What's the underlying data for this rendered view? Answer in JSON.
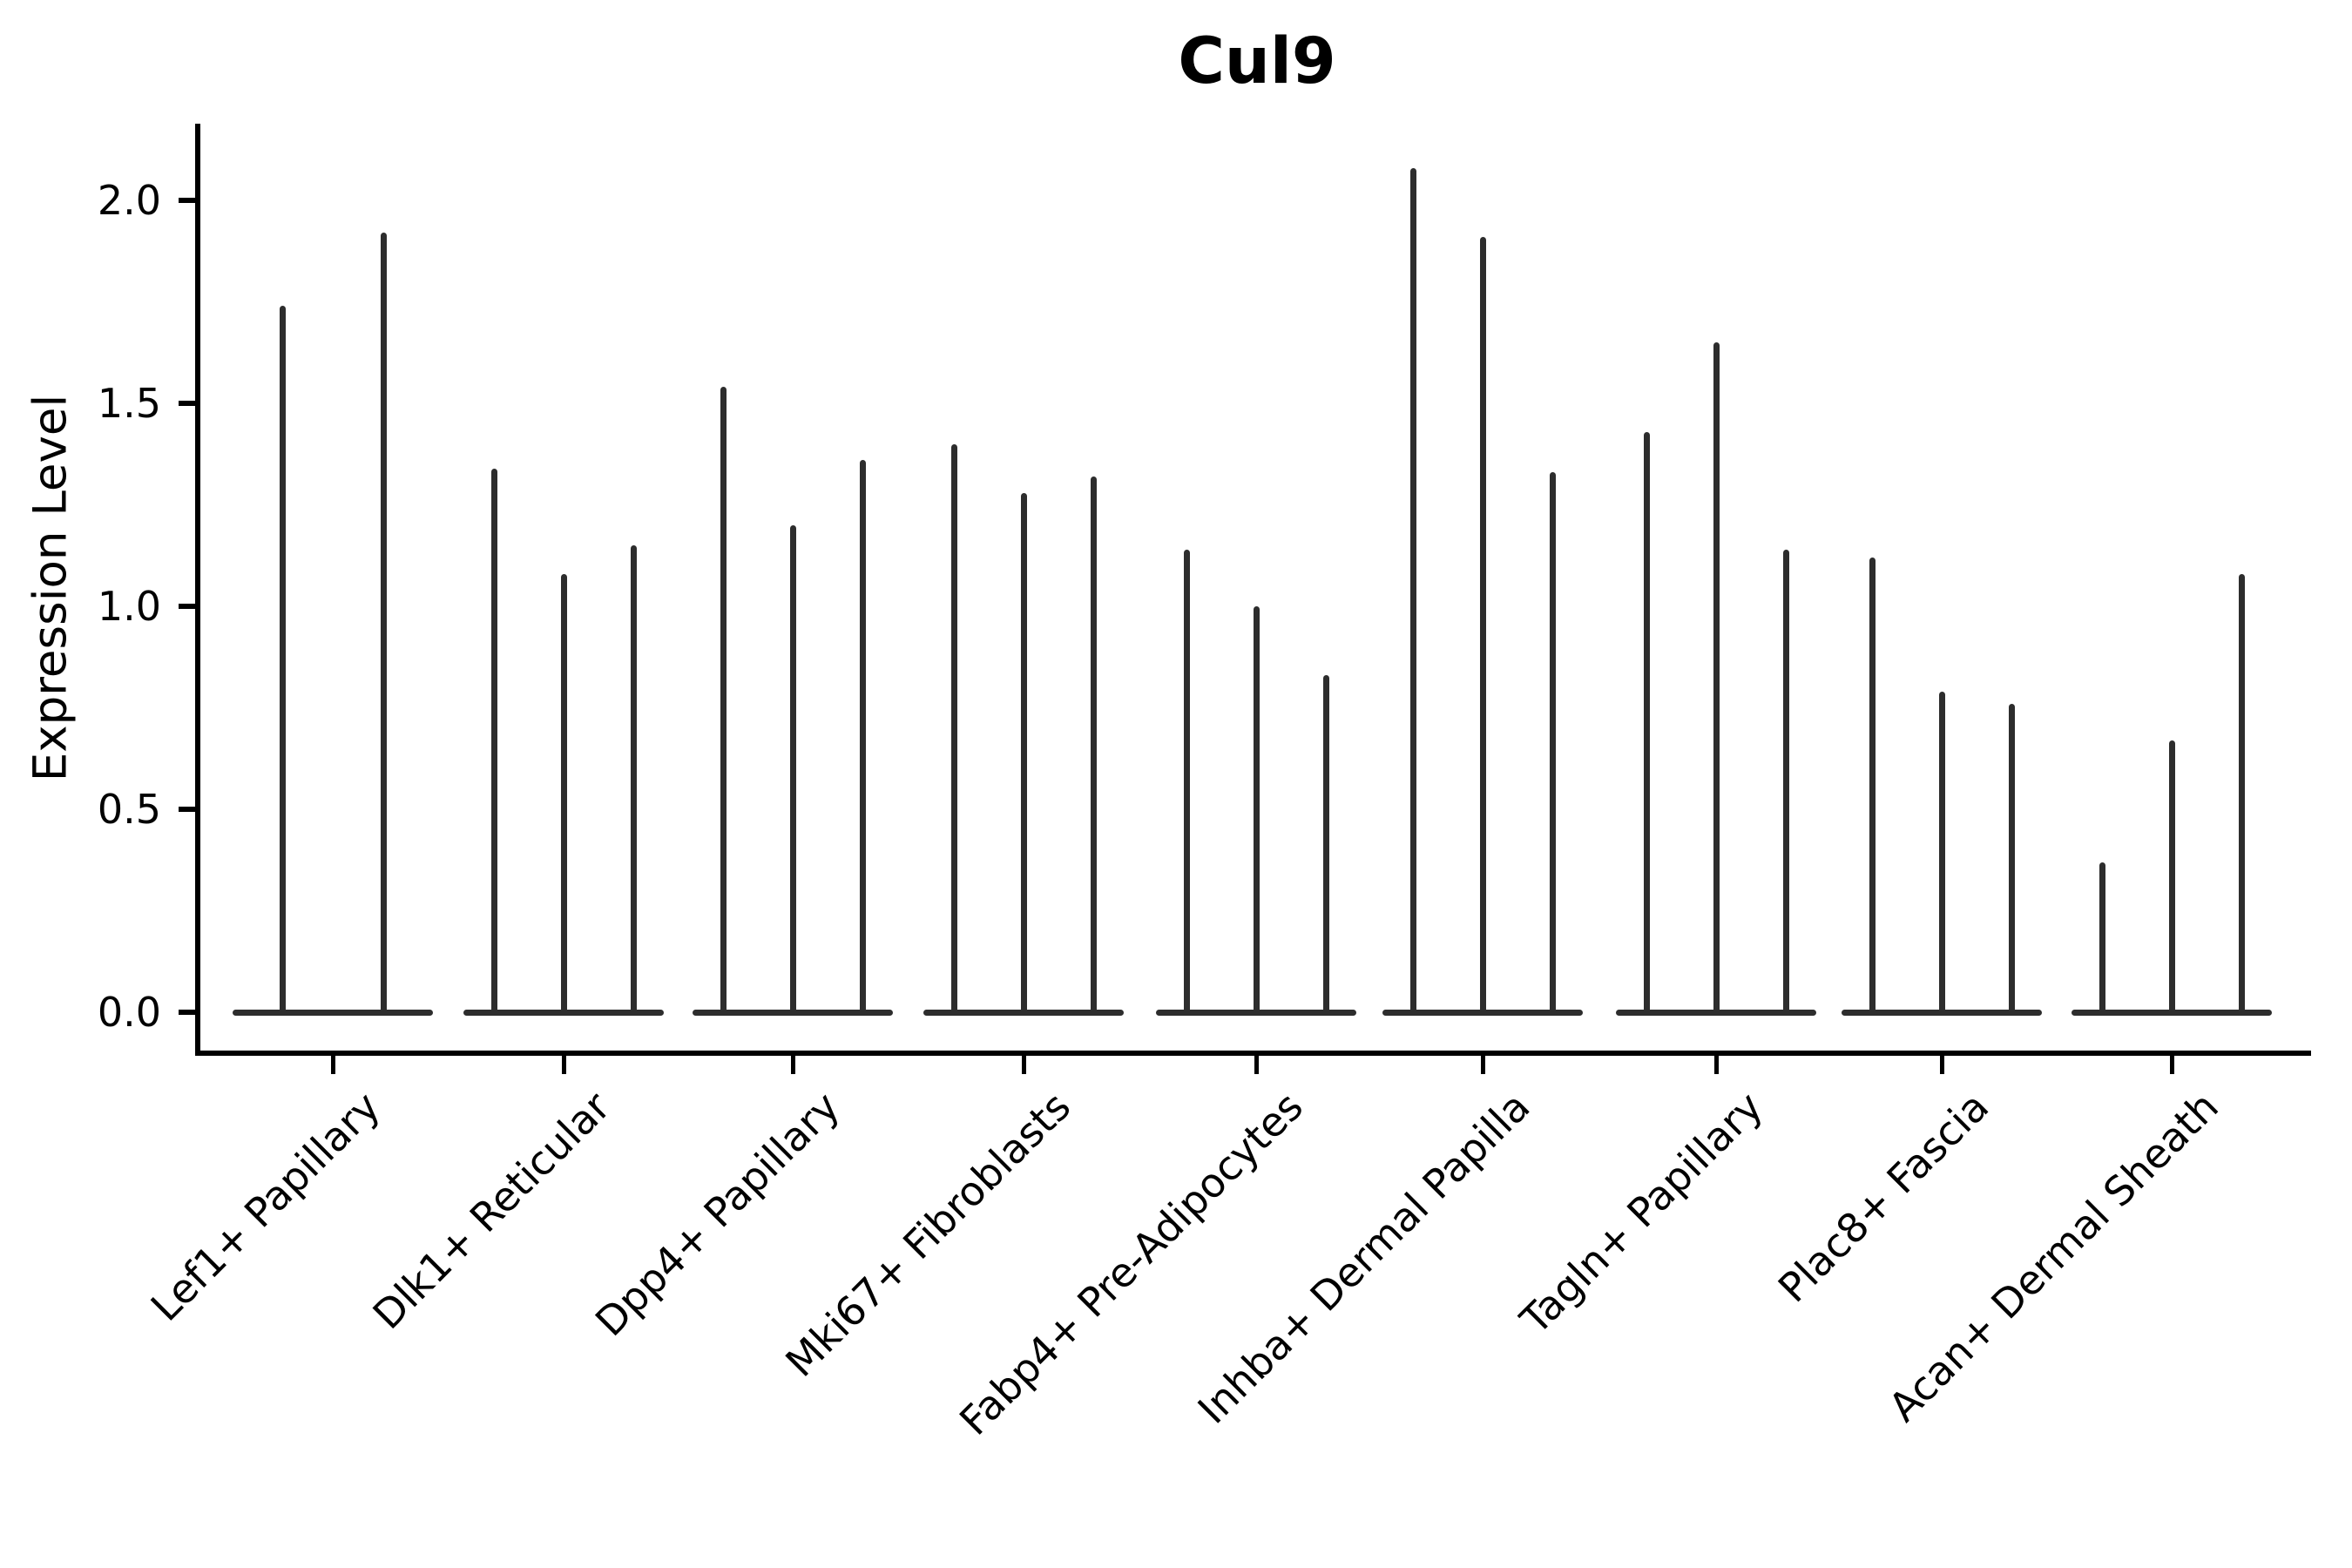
{
  "figure": {
    "title": "Cul9",
    "ylabel": "Expression Level"
  },
  "chart_data": {
    "type": "violin",
    "title": "Cul9",
    "subtitle": "",
    "xlabel": "",
    "ylabel": "Expression Level",
    "ylim": [
      0,
      2.19
    ],
    "grid": "off",
    "legend": "none",
    "background_color": "#ffffff",
    "axis_color": "#000000",
    "violin_color": "#2d2d2d",
    "yticks": [
      {
        "value": 0.0,
        "label": "0.0"
      },
      {
        "value": 0.5,
        "label": "0.5"
      },
      {
        "value": 1.0,
        "label": "1.0"
      },
      {
        "value": 1.5,
        "label": "1.5"
      },
      {
        "value": 2.0,
        "label": "2.0"
      }
    ],
    "categories": [
      "Lef1+ Papillary",
      "Dlk1+ Reticular",
      "Dpp4+ Papillary",
      "Mki67+ Fibroblasts",
      "Fabp4+ Pre-Adipocytes",
      "Inhba+ Dermal Papilla",
      "Tagln+ Papillary",
      "Plac8+ Fascia",
      "Acan+ Dermal Sheath"
    ],
    "groups": [
      {
        "category": "Lef1+ Papillary",
        "violin_peaks": [
          1.74,
          1.92
        ]
      },
      {
        "category": "Dlk1+ Reticular",
        "violin_peaks": [
          1.34,
          1.08,
          1.15
        ]
      },
      {
        "category": "Dpp4+ Papillary",
        "violin_peaks": [
          1.54,
          1.2,
          1.36
        ]
      },
      {
        "category": "Mki67+ Fibroblasts",
        "violin_peaks": [
          1.4,
          1.28,
          1.32
        ]
      },
      {
        "category": "Fabp4+ Pre-Adipocytes",
        "violin_peaks": [
          1.14,
          1.0,
          0.83
        ]
      },
      {
        "category": "Inhba+ Dermal Papilla",
        "violin_peaks": [
          2.08,
          1.91,
          1.33
        ]
      },
      {
        "category": "Tagln+ Papillary",
        "violin_peaks": [
          1.43,
          1.65,
          1.14
        ]
      },
      {
        "category": "Plac8+ Fascia",
        "violin_peaks": [
          1.12,
          0.79,
          0.76
        ]
      },
      {
        "category": "Acan+ Dermal Sheath",
        "violin_peaks": [
          0.37,
          0.67,
          1.08
        ]
      }
    ],
    "note": "Each category shows 2-3 near-zero-width violins: a flat base at expression 0 with a thin spike rising to the listed maximum expression value."
  }
}
